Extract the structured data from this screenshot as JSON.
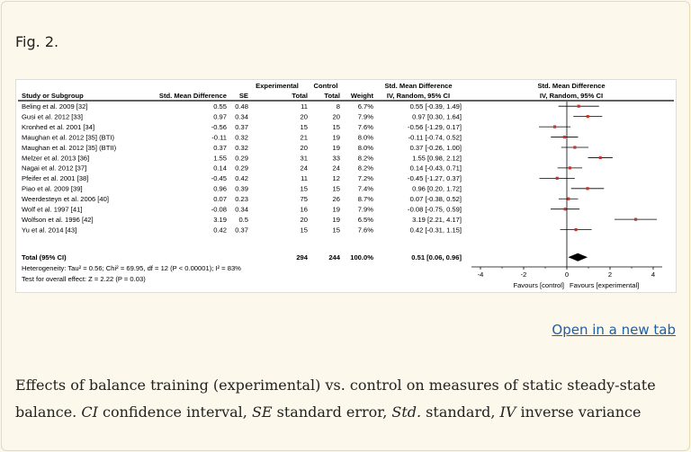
{
  "figure_label": "Fig. 2.",
  "open_link": "Open in a new tab",
  "caption": [
    {
      "t": "Effects of balance training (experimental) vs. control on measures of static steady-state balance. ",
      "i": false
    },
    {
      "t": "CI",
      "i": true
    },
    {
      "t": " confidence interval, ",
      "i": false
    },
    {
      "t": "SE",
      "i": true
    },
    {
      "t": " standard error, ",
      "i": false
    },
    {
      "t": "Std.",
      "i": true
    },
    {
      "t": " standard, ",
      "i": false
    },
    {
      "t": "IV",
      "i": true
    },
    {
      "t": " inverse variance",
      "i": false
    }
  ],
  "chart_data": {
    "type": "forest",
    "headers": {
      "experimental": "Experimental",
      "control": "Control",
      "smd_group": "Std. Mean Difference",
      "plot_group": "Std. Mean Difference",
      "study": "Study or Subgroup",
      "smd": "Std. Mean Difference",
      "se": "SE",
      "exp_total": "Total",
      "ctl_total": "Total",
      "weight": "Weight",
      "ci": "IV, Random, 95% CI",
      "plot_ci": "IV, Random, 95% CI"
    },
    "studies": [
      {
        "name": "Beling et al. 2009 [32]",
        "smd": "0.55",
        "se": "0.48",
        "exp": "11",
        "ctl": "8",
        "weight": "6.7%",
        "ci": "0.55 [-0.39, 1.49]",
        "est": 0.55,
        "lo": -0.39,
        "hi": 1.49
      },
      {
        "name": "Gusi et al. 2012 [33]",
        "smd": "0.97",
        "se": "0.34",
        "exp": "20",
        "ctl": "20",
        "weight": "7.9%",
        "ci": "0.97 [0.30, 1.64]",
        "est": 0.97,
        "lo": 0.3,
        "hi": 1.64
      },
      {
        "name": "Kronhed et al. 2001 [34]",
        "smd": "-0.56",
        "se": "0.37",
        "exp": "15",
        "ctl": "15",
        "weight": "7.6%",
        "ci": "-0.56 [-1.29, 0.17]",
        "est": -0.56,
        "lo": -1.29,
        "hi": 0.17
      },
      {
        "name": "Maughan et al. 2012 [35] (BTI)",
        "smd": "-0.11",
        "se": "0.32",
        "exp": "21",
        "ctl": "19",
        "weight": "8.0%",
        "ci": "-0.11 [-0.74, 0.52]",
        "est": -0.11,
        "lo": -0.74,
        "hi": 0.52
      },
      {
        "name": "Maughan et al. 2012 [35] (BTII)",
        "smd": "0.37",
        "se": "0.32",
        "exp": "20",
        "ctl": "19",
        "weight": "8.0%",
        "ci": "0.37 [-0.26, 1.00]",
        "est": 0.37,
        "lo": -0.26,
        "hi": 1.0
      },
      {
        "name": "Melzer et al. 2013 [36]",
        "smd": "1.55",
        "se": "0.29",
        "exp": "31",
        "ctl": "33",
        "weight": "8.2%",
        "ci": "1.55 [0.98, 2.12]",
        "est": 1.55,
        "lo": 0.98,
        "hi": 2.12
      },
      {
        "name": "Nagai et al. 2012 [37]",
        "smd": "0.14",
        "se": "0.29",
        "exp": "24",
        "ctl": "24",
        "weight": "8.2%",
        "ci": "0.14 [-0.43, 0.71]",
        "est": 0.14,
        "lo": -0.43,
        "hi": 0.71
      },
      {
        "name": "Pfeifer et al. 2001 [38]",
        "smd": "-0.45",
        "se": "0.42",
        "exp": "11",
        "ctl": "12",
        "weight": "7.2%",
        "ci": "-0.45 [-1.27, 0.37]",
        "est": -0.45,
        "lo": -1.27,
        "hi": 0.37
      },
      {
        "name": "Piao et al. 2009 [39]",
        "smd": "0.96",
        "se": "0.39",
        "exp": "15",
        "ctl": "15",
        "weight": "7.4%",
        "ci": "0.96 [0.20, 1.72]",
        "est": 0.96,
        "lo": 0.2,
        "hi": 1.72
      },
      {
        "name": "Weerdesteyn et al. 2006 [40]",
        "smd": "0.07",
        "se": "0.23",
        "exp": "75",
        "ctl": "26",
        "weight": "8.7%",
        "ci": "0.07 [-0.38, 0.52]",
        "est": 0.07,
        "lo": -0.38,
        "hi": 0.52
      },
      {
        "name": "Wolf et al. 1997 [41]",
        "smd": "-0.08",
        "se": "0.34",
        "exp": "16",
        "ctl": "19",
        "weight": "7.9%",
        "ci": "-0.08 [-0.75, 0.59]",
        "est": -0.08,
        "lo": -0.75,
        "hi": 0.59
      },
      {
        "name": "Wolfson et al. 1996 [42]",
        "smd": "3.19",
        "se": "0.5",
        "exp": "20",
        "ctl": "19",
        "weight": "6.5%",
        "ci": "3.19 [2.21, 4.17]",
        "est": 3.19,
        "lo": 2.21,
        "hi": 4.17
      },
      {
        "name": "Yu et al. 2014 [43]",
        "smd": "0.42",
        "se": "0.37",
        "exp": "15",
        "ctl": "15",
        "weight": "7.6%",
        "ci": "0.42 [-0.31, 1.15]",
        "est": 0.42,
        "lo": -0.31,
        "hi": 1.15
      }
    ],
    "total": {
      "name": "Total (95% CI)",
      "exp": "294",
      "ctl": "244",
      "weight": "100.0%",
      "ci": "0.51 [0.06, 0.96]",
      "est": 0.51,
      "lo": 0.06,
      "hi": 0.96
    },
    "heterogeneity": "Heterogeneity: Tau² = 0.56; Chi² = 69.95, df = 12 (P < 0.00001); I² = 83%",
    "overall_test": "Test for overall effect: Z = 2.22 (P = 0.03)",
    "x_axis": {
      "min": -4,
      "max": 4,
      "ticks": [
        -4,
        -2,
        0,
        2,
        4
      ]
    },
    "favours_left": "Favours [control]",
    "favours_right": "Favours [experimental]",
    "colors": {
      "point": "#c0392b",
      "line": "#000000",
      "diamond": "#000000"
    }
  }
}
